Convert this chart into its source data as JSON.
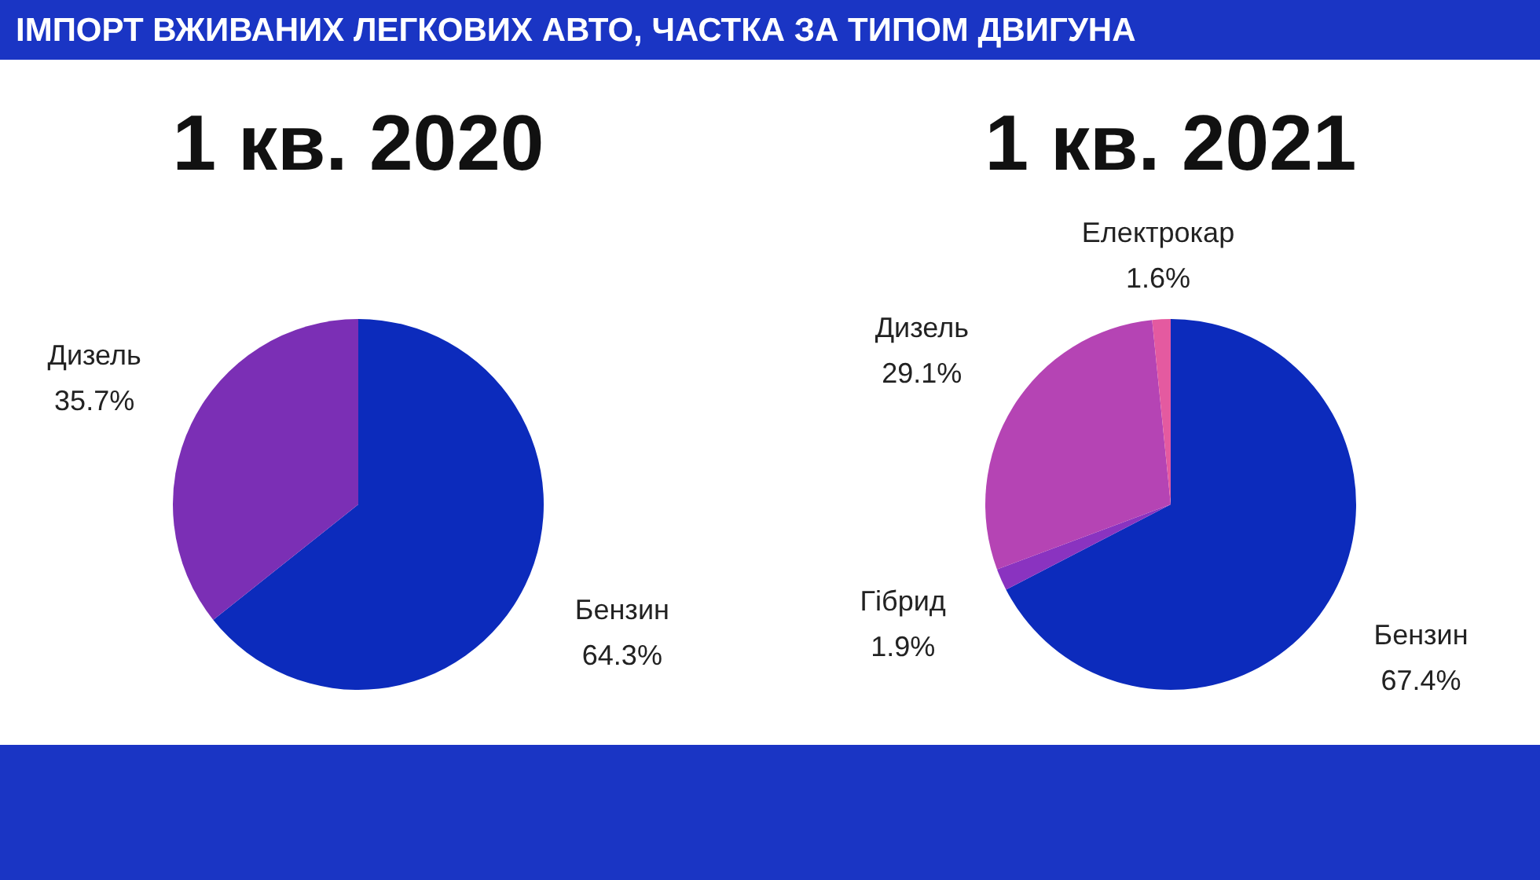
{
  "chart_data": [
    {
      "type": "pie",
      "title": "ІМПОРТ ВЖИВАНИХ ЛЕГКОВИХ АВТО, ЧАСТКА ЗА ТИПОМ ДВИГУНА",
      "subtitle": "1 кв. 2020",
      "categories": [
        "Бензин",
        "Дизель"
      ],
      "values": [
        64.3,
        35.7
      ],
      "colors": [
        "#0c2bbc",
        "#7b2fb5"
      ],
      "value_labels": [
        "64.3%",
        "35.7%"
      ]
    },
    {
      "type": "pie",
      "subtitle": "1 кв. 2021",
      "categories": [
        "Бензин",
        "Гібрид",
        "Дизель",
        "Електрокар"
      ],
      "values": [
        67.4,
        1.9,
        29.1,
        1.6
      ],
      "colors": [
        "#0c2bbc",
        "#8a33c0",
        "#b544b4",
        "#e45aa0"
      ],
      "value_labels": [
        "67.4%",
        "1.9%",
        "29.1%",
        "1.6%"
      ]
    }
  ]
}
